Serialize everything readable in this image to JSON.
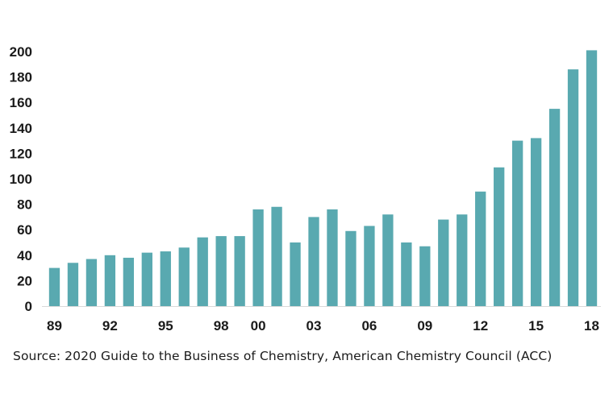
{
  "chart_data": {
    "type": "bar",
    "title": "",
    "xlabel": "",
    "ylabel": "",
    "ylim": [
      0,
      200
    ],
    "yticks": [
      0,
      20,
      40,
      60,
      80,
      100,
      120,
      140,
      160,
      180,
      200
    ],
    "categories": [
      "89",
      "90",
      "91",
      "92",
      "93",
      "94",
      "95",
      "96",
      "97",
      "98",
      "99",
      "00",
      "01",
      "02",
      "03",
      "04",
      "05",
      "06",
      "07",
      "08",
      "09",
      "10",
      "11",
      "12",
      "13",
      "14",
      "15",
      "16",
      "17",
      "18"
    ],
    "values": [
      30,
      34,
      37,
      40,
      38,
      42,
      43,
      46,
      54,
      55,
      55,
      76,
      78,
      50,
      70,
      76,
      59,
      63,
      72,
      50,
      47,
      68,
      72,
      90,
      109,
      130,
      132,
      155,
      186,
      201
    ],
    "xtick_labels": [
      "89",
      "92",
      "95",
      "98",
      "00",
      "03",
      "06",
      "09",
      "12",
      "15",
      "18"
    ],
    "bar_color": "#59a9b0",
    "grid": false,
    "legend": "none"
  },
  "source_note": "Source: 2020 Guide to the Business of Chemistry, American Chemistry Council  (ACC)"
}
